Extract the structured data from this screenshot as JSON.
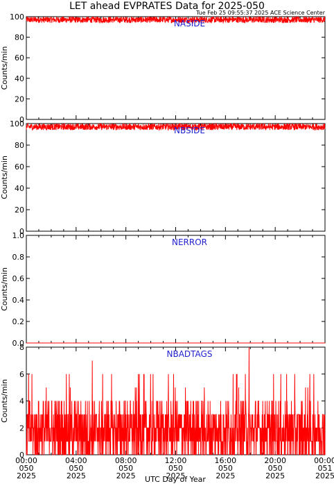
{
  "title": "LET ahead EVPRATES Data for 2025-050",
  "timestamp": "Tue Feb 25 09:55:37 2025 ACE Science Center",
  "xlabel": "UTC Day of Year",
  "colors": {
    "series": "#ff0000",
    "panel_label": "#1f1fd0"
  },
  "x_ticks": [
    {
      "time": "00:00",
      "doy": "050",
      "year": "2025"
    },
    {
      "time": "04:00",
      "doy": "050",
      "year": "2025"
    },
    {
      "time": "08:00",
      "doy": "050",
      "year": "2025"
    },
    {
      "time": "12:00",
      "doy": "050",
      "year": "2025"
    },
    {
      "time": "16:00",
      "doy": "050",
      "year": "2025"
    },
    {
      "time": "20:00",
      "doy": "050",
      "year": "2025"
    },
    {
      "time": "00:00",
      "doy": "051",
      "year": "2025"
    }
  ],
  "chart_data": [
    {
      "type": "line",
      "panel_label": "NASIDE",
      "ylabel": "Counts/min",
      "ylim": [
        0,
        100
      ],
      "yticks": [
        "0",
        "20",
        "40",
        "60",
        "80",
        "100"
      ],
      "xlim_hours": [
        0,
        24
      ],
      "series": [
        {
          "values_summary": "dense noisy signal ~94-100 counts/min over full day",
          "level": 97,
          "spread": 3
        }
      ]
    },
    {
      "type": "line",
      "panel_label": "NBSIDE",
      "ylabel": "Counts/min",
      "ylim": [
        0,
        100
      ],
      "yticks": [
        "0",
        "20",
        "40",
        "60",
        "80",
        "100"
      ],
      "xlim_hours": [
        0,
        24
      ],
      "series": [
        {
          "values_summary": "dense noisy signal ~93-100 counts/min over full day",
          "level": 97,
          "spread": 3
        }
      ]
    },
    {
      "type": "line",
      "panel_label": "NERROR",
      "ylabel": "Counts/min",
      "ylim": [
        0,
        1
      ],
      "yticks": [
        "0.0",
        "0.2",
        "0.4",
        "0.6",
        "0.8",
        "1.0"
      ],
      "xlim_hours": [
        0,
        24
      ],
      "series": [
        {
          "values_summary": "constant zero",
          "level": 0,
          "spread": 0
        }
      ]
    },
    {
      "type": "line",
      "panel_label": "NBADTAGS",
      "ylabel": "Counts/min",
      "ylim": [
        0,
        8
      ],
      "yticks": [
        "0",
        "2",
        "4",
        "6",
        "8"
      ],
      "xlim_hours": [
        0,
        24
      ],
      "series": [
        {
          "values_summary": "integer counts 0-4 mostly, spikes to 6-7, one spike to 8 near 18:00",
          "level": 2,
          "spread": 2
        }
      ]
    }
  ]
}
